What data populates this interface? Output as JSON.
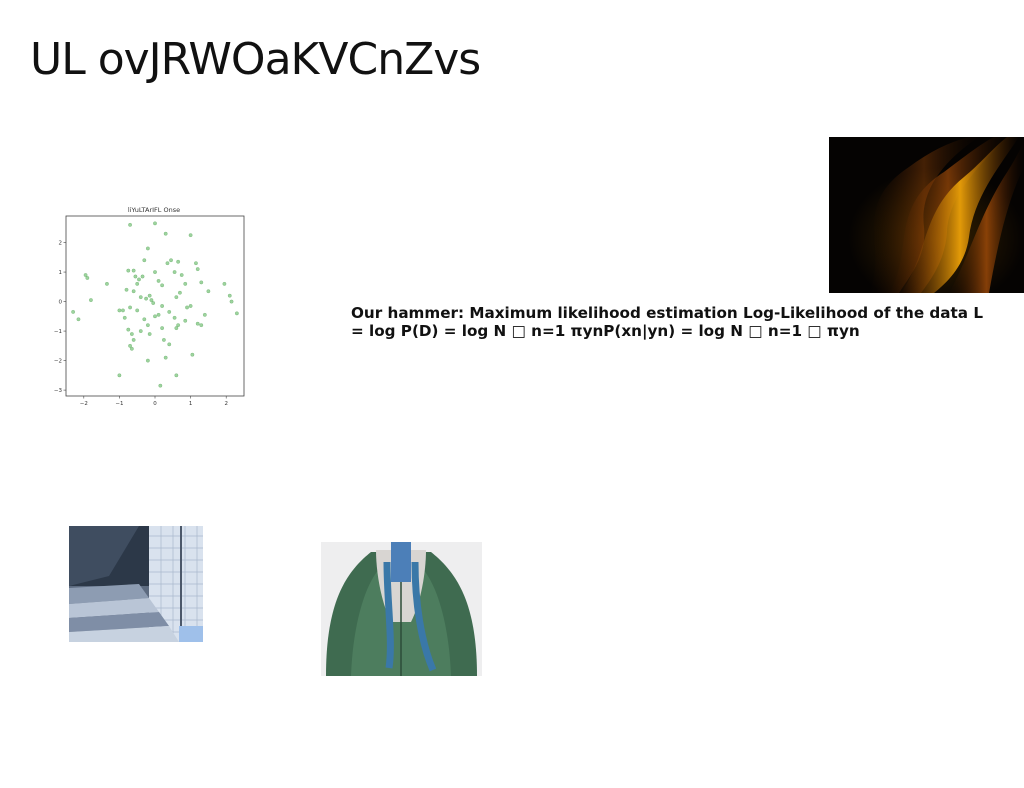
{
  "slide": {
    "title": "UL ovJRWOaKVCnZvs",
    "body": "Our hammer: Maximum likelihood estimation Log-Likelihood of the data L = log P(D) = log N □ n=1 πynP(xn|yn) = log N □ n=1 □ πyn"
  },
  "images": {
    "flame": "flame-abstract-photo",
    "stairs": "stairs-photo",
    "person": "person-green-jacket-photo"
  },
  "colors": {
    "point": "#7cc47e",
    "point_edge": "#5aa55c"
  },
  "chart_data": {
    "type": "scatter",
    "title": "liYuLTArIFL Onse",
    "xlabel": "",
    "ylabel": "",
    "xlim": [
      -2.5,
      2.5
    ],
    "ylim": [
      -3.2,
      2.9
    ],
    "xticks": [
      -2,
      -1,
      0,
      1,
      2
    ],
    "yticks": [
      -3,
      -2,
      -1,
      0,
      1,
      2
    ],
    "tick_labels_x": [
      "−2",
      "−1",
      "0",
      "1",
      "2"
    ],
    "tick_labels_y": [
      "−3",
      "−2",
      "−1",
      "0",
      "1",
      "2"
    ],
    "grid": false,
    "points": [
      [
        -0.7,
        2.6
      ],
      [
        0.0,
        2.65
      ],
      [
        0.3,
        2.3
      ],
      [
        1.0,
        2.25
      ],
      [
        -0.2,
        1.8
      ],
      [
        -1.95,
        0.9
      ],
      [
        -1.9,
        0.8
      ],
      [
        -1.8,
        0.05
      ],
      [
        -2.3,
        -0.35
      ],
      [
        -2.15,
        -0.6
      ],
      [
        -1.35,
        0.6
      ],
      [
        -0.8,
        0.4
      ],
      [
        -0.75,
        1.05
      ],
      [
        -0.6,
        1.05
      ],
      [
        -0.55,
        0.85
      ],
      [
        -0.45,
        0.75
      ],
      [
        -0.35,
        0.85
      ],
      [
        -0.3,
        1.4
      ],
      [
        -0.5,
        0.6
      ],
      [
        -0.6,
        0.35
      ],
      [
        -0.4,
        0.15
      ],
      [
        -0.25,
        0.1
      ],
      [
        -0.15,
        0.2
      ],
      [
        -0.1,
        0.05
      ],
      [
        -0.05,
        -0.05
      ],
      [
        0.0,
        1.0
      ],
      [
        0.1,
        0.7
      ],
      [
        0.2,
        0.55
      ],
      [
        0.35,
        1.3
      ],
      [
        0.45,
        1.4
      ],
      [
        0.55,
        1.0
      ],
      [
        0.65,
        1.35
      ],
      [
        0.75,
        0.9
      ],
      [
        0.85,
        0.6
      ],
      [
        1.15,
        1.3
      ],
      [
        1.2,
        1.1
      ],
      [
        1.3,
        0.65
      ],
      [
        1.5,
        0.35
      ],
      [
        1.95,
        0.6
      ],
      [
        2.1,
        0.2
      ],
      [
        2.15,
        0.0
      ],
      [
        2.3,
        -0.4
      ],
      [
        0.6,
        0.15
      ],
      [
        0.7,
        0.3
      ],
      [
        0.9,
        -0.2
      ],
      [
        1.0,
        -0.15
      ],
      [
        1.3,
        -0.8
      ],
      [
        1.2,
        -0.75
      ],
      [
        1.4,
        -0.45
      ],
      [
        0.85,
        -0.65
      ],
      [
        0.55,
        -0.55
      ],
      [
        0.65,
        -0.8
      ],
      [
        0.4,
        -0.35
      ],
      [
        0.2,
        -0.15
      ],
      [
        0.0,
        -0.5
      ],
      [
        0.1,
        -0.45
      ],
      [
        -0.2,
        -0.8
      ],
      [
        -0.3,
        -0.6
      ],
      [
        -0.5,
        -0.3
      ],
      [
        -0.7,
        -0.2
      ],
      [
        -0.9,
        -0.3
      ],
      [
        -1.0,
        -0.3
      ],
      [
        -0.75,
        -0.95
      ],
      [
        -0.65,
        -1.1
      ],
      [
        -0.6,
        -1.3
      ],
      [
        -0.7,
        -1.5
      ],
      [
        -0.65,
        -1.6
      ],
      [
        -0.4,
        -1.0
      ],
      [
        -0.15,
        -1.1
      ],
      [
        0.2,
        -0.9
      ],
      [
        0.25,
        -1.3
      ],
      [
        0.4,
        -1.45
      ],
      [
        0.6,
        -0.9
      ],
      [
        1.05,
        -1.8
      ],
      [
        -1.0,
        -2.5
      ],
      [
        0.6,
        -2.5
      ],
      [
        0.15,
        -2.85
      ],
      [
        -0.2,
        -2.0
      ],
      [
        0.3,
        -1.9
      ],
      [
        -0.85,
        -0.55
      ]
    ]
  }
}
